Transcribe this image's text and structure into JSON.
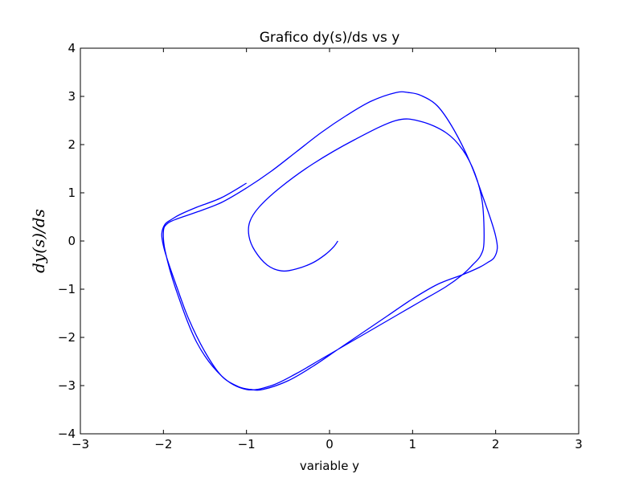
{
  "chart_data": {
    "type": "line",
    "title": "Grafico dy(s)/ds vs y",
    "xlabel": "variable y",
    "ylabel": "dy(s)/ds",
    "xlim": [
      -3,
      3
    ],
    "ylim": [
      -4,
      4
    ],
    "xticks": [
      -3,
      -2,
      -1,
      0,
      1,
      2,
      3
    ],
    "yticks": [
      -4,
      -3,
      -2,
      -1,
      0,
      1,
      2,
      3,
      4
    ],
    "xtick_labels": [
      "−3",
      "−2",
      "−1",
      "0",
      "1",
      "2",
      "3"
    ],
    "ytick_labels": [
      "−4",
      "−3",
      "−2",
      "−1",
      "0",
      "1",
      "2",
      "3",
      "4"
    ],
    "grid": false,
    "series_color": "#0000ff",
    "series": [
      {
        "x": [
          0.1,
          0.05,
          -0.05,
          -0.2,
          -0.4,
          -0.58,
          -0.75,
          -0.9,
          -0.97,
          -0.96,
          -0.85,
          -0.6,
          -0.2,
          0.3,
          0.8,
          1.1,
          1.4,
          1.6,
          1.75,
          1.84,
          1.86,
          1.82,
          1.72,
          1.6,
          1.4,
          1.1,
          0.8,
          0.5,
          0.2,
          -0.1,
          -0.4,
          -0.7,
          -1.0,
          -1.3,
          -1.6,
          -1.85,
          -1.98,
          -2.0,
          -1.96,
          -1.85,
          -1.6,
          -1.3,
          -1.0,
          -0.7,
          -0.4,
          -0.1,
          0.2,
          0.5,
          0.8,
          0.95,
          1.1,
          1.3,
          1.5,
          1.7,
          1.85,
          1.95,
          2.0,
          2.02,
          1.98,
          1.9,
          1.8,
          1.6,
          1.3,
          1.0,
          0.7,
          0.4,
          0.1,
          -0.2,
          -0.5,
          -0.8,
          -0.95,
          -1.1,
          -1.3,
          -1.5,
          -1.7,
          -1.85,
          -1.95,
          -2.0,
          -2.02,
          -1.98,
          -1.9,
          -1.8,
          -1.6,
          -1.3,
          -1.0
        ],
        "y": [
          0.0,
          -0.12,
          -0.28,
          -0.45,
          -0.58,
          -0.62,
          -0.5,
          -0.2,
          0.1,
          0.4,
          0.7,
          1.1,
          1.6,
          2.1,
          2.5,
          2.48,
          2.25,
          1.9,
          1.4,
          0.8,
          0.0,
          -0.3,
          -0.5,
          -0.7,
          -0.95,
          -1.25,
          -1.55,
          -1.85,
          -2.15,
          -2.45,
          -2.75,
          -3.0,
          -3.08,
          -2.8,
          -2.1,
          -1.0,
          -0.2,
          0.2,
          0.35,
          0.45,
          0.6,
          0.8,
          1.1,
          1.45,
          1.85,
          2.25,
          2.6,
          2.9,
          3.08,
          3.08,
          3.02,
          2.8,
          2.3,
          1.6,
          0.9,
          0.4,
          0.1,
          -0.15,
          -0.35,
          -0.45,
          -0.55,
          -0.7,
          -0.9,
          -1.2,
          -1.55,
          -1.9,
          -2.25,
          -2.6,
          -2.9,
          -3.08,
          -3.08,
          -3.02,
          -2.8,
          -2.3,
          -1.6,
          -0.9,
          -0.4,
          -0.1,
          0.15,
          0.35,
          0.45,
          0.55,
          0.7,
          0.9,
          1.2
        ]
      }
    ]
  }
}
